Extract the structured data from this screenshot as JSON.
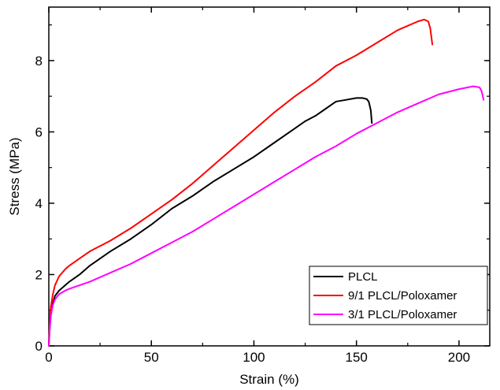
{
  "chart_data": {
    "type": "line",
    "title": "",
    "xlabel": "Strain (%)",
    "ylabel": "Stress (MPa)",
    "xlim": [
      0,
      215
    ],
    "ylim": [
      0,
      9.5
    ],
    "x_ticks": [
      0,
      50,
      100,
      150,
      200
    ],
    "y_ticks": [
      0,
      2,
      4,
      6,
      8
    ],
    "x_minor_step": 25,
    "y_minor_step": 1,
    "grid": false,
    "legend_position": "bottom-right",
    "series": [
      {
        "name": "PLCL",
        "color": "#000000",
        "x": [
          0,
          0.5,
          1,
          2,
          3,
          5,
          8,
          10,
          15,
          20,
          30,
          40,
          50,
          60,
          70,
          80,
          90,
          100,
          110,
          120,
          125,
          130,
          135,
          140,
          145,
          150,
          153,
          155,
          156,
          157,
          157.5
        ],
        "y": [
          0,
          0.55,
          0.9,
          1.2,
          1.4,
          1.55,
          1.7,
          1.8,
          2.0,
          2.25,
          2.65,
          3.0,
          3.4,
          3.85,
          4.2,
          4.6,
          4.95,
          5.3,
          5.7,
          6.1,
          6.3,
          6.45,
          6.65,
          6.85,
          6.9,
          6.95,
          6.95,
          6.92,
          6.85,
          6.6,
          6.25
        ]
      },
      {
        "name": "9/1 PLCL/Poloxamer",
        "color": "#ff0000",
        "x": [
          0,
          0.5,
          1,
          2,
          3,
          5,
          8,
          10,
          15,
          20,
          30,
          40,
          50,
          60,
          70,
          80,
          90,
          100,
          110,
          120,
          130,
          140,
          150,
          160,
          170,
          180,
          183,
          185,
          186,
          187
        ],
        "y": [
          0,
          0.7,
          1.1,
          1.45,
          1.7,
          1.95,
          2.15,
          2.25,
          2.45,
          2.65,
          2.95,
          3.3,
          3.7,
          4.1,
          4.55,
          5.05,
          5.55,
          6.05,
          6.55,
          7.0,
          7.4,
          7.85,
          8.15,
          8.5,
          8.85,
          9.1,
          9.15,
          9.1,
          8.9,
          8.45
        ]
      },
      {
        "name": "3/1 PLCL/Poloxamer",
        "color": "#ff00ff",
        "x": [
          0,
          0.5,
          1,
          2,
          3,
          5,
          8,
          10,
          15,
          20,
          30,
          40,
          50,
          60,
          70,
          80,
          90,
          100,
          110,
          120,
          130,
          140,
          150,
          160,
          170,
          180,
          190,
          200,
          207,
          210,
          211,
          212
        ],
        "y": [
          0,
          0.5,
          0.85,
          1.15,
          1.3,
          1.45,
          1.55,
          1.6,
          1.7,
          1.8,
          2.05,
          2.3,
          2.6,
          2.9,
          3.2,
          3.55,
          3.9,
          4.25,
          4.6,
          4.95,
          5.3,
          5.6,
          5.95,
          6.25,
          6.55,
          6.8,
          7.05,
          7.2,
          7.28,
          7.25,
          7.15,
          6.9
        ]
      }
    ]
  }
}
